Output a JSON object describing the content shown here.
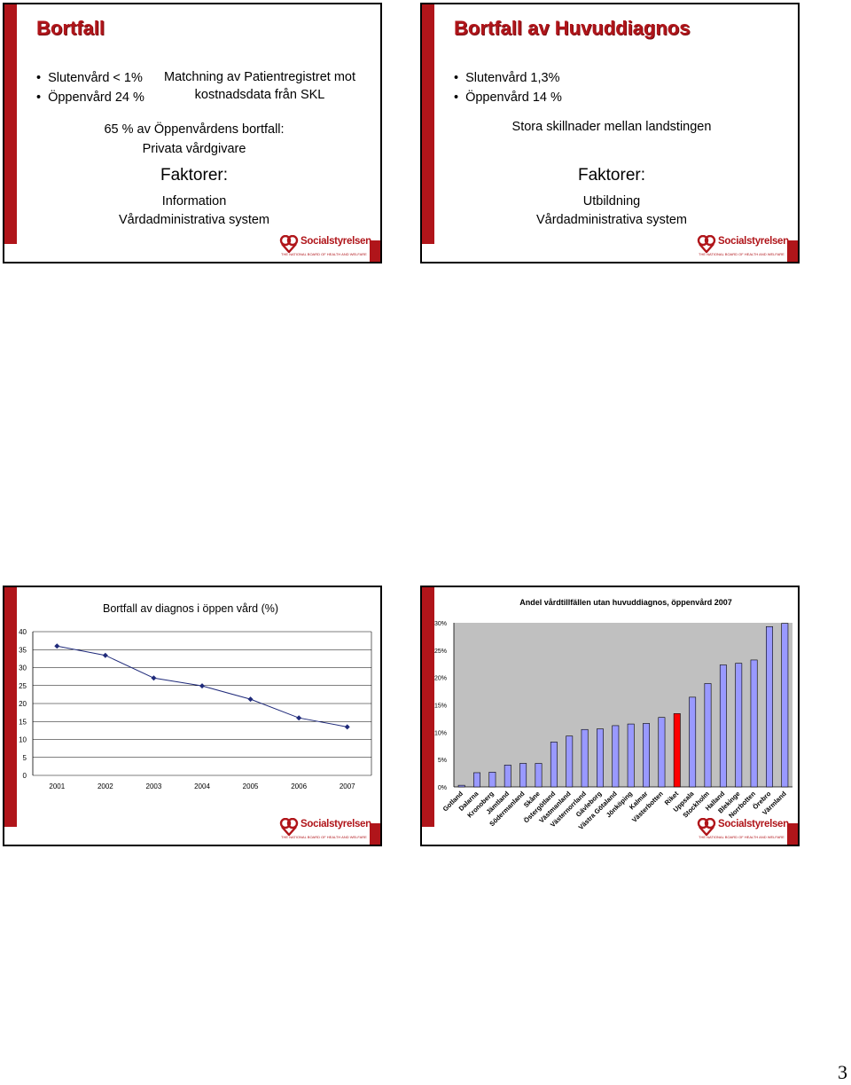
{
  "slides": [
    {
      "title": "Bortfall",
      "bullets": [
        "Slutenvård < 1%",
        "Öppenvård 24 %"
      ],
      "side_note_line1": "Matchning av Patientregistret mot",
      "side_note_line2": "kostnadsdata från SKL",
      "share_line1": "65 % av Öppenvårdens bortfall:",
      "share_line2": "Privata vårdgivare",
      "factors_heading": "Faktorer:",
      "factors": [
        "Information",
        "Vårdadministrativa system"
      ]
    },
    {
      "title": "Bortfall av Huvuddiagnos",
      "bullets": [
        "Slutenvård  1,3%",
        "Öppenvård 14 %"
      ],
      "note": "Stora skillnader mellan landstingen",
      "factors_heading": "Faktorer:",
      "factors": [
        "Utbildning",
        "Vårdadministrativa system"
      ]
    }
  ],
  "logo": {
    "name": "Socialstyrelsen",
    "subtitle": "THE NATIONAL BOARD OF HEALTH AND WELFARE",
    "color": "#b0151a"
  },
  "page_number": "3",
  "chart_data": [
    {
      "type": "line",
      "title": "Bortfall av diagnos i öppen vård (%)",
      "x": [
        "2001",
        "2002",
        "2003",
        "2004",
        "2005",
        "2006",
        "2007"
      ],
      "values": [
        36,
        33.4,
        27.1,
        24.9,
        21.2,
        16,
        13.5
      ],
      "ylim": [
        0,
        40
      ],
      "yticks": [
        0,
        5,
        10,
        15,
        20,
        25,
        30,
        35,
        40
      ],
      "grid": true,
      "line_color": "#1f2a7a"
    },
    {
      "type": "bar",
      "title": "Andel vårdtillfällen utan huvuddiagnos, öppenvård 2007",
      "categories": [
        "Gotland",
        "Dalarna",
        "Kronoberg",
        "Jämtland",
        "Södermanland",
        "Skåne",
        "Östergötland",
        "Västmanland",
        "Västernorrland",
        "Gävleborg",
        "Västra Götaland",
        "Jönköping",
        "Kalmar",
        "Västerbotten",
        "Riket",
        "Uppsala",
        "Stockholm",
        "Halland",
        "Blekinge",
        "Norrbotten",
        "Örebro",
        "Värmland"
      ],
      "values": [
        0.3,
        2.6,
        2.7,
        4.0,
        4.3,
        4.3,
        8.2,
        9.3,
        10.5,
        10.6,
        11.2,
        11.5,
        11.6,
        12.7,
        13.4,
        16.4,
        18.9,
        22.3,
        22.6,
        23.2,
        29.3,
        29.9
      ],
      "highlight": "Riket",
      "ylim": [
        0,
        30
      ],
      "yticks": [
        "0%",
        "5%",
        "10%",
        "15%",
        "20%",
        "25%",
        "30%"
      ],
      "bar_color": "#9999ff",
      "highlight_color": "#ff0000",
      "plot_bg": "#c0c0c0"
    }
  ]
}
